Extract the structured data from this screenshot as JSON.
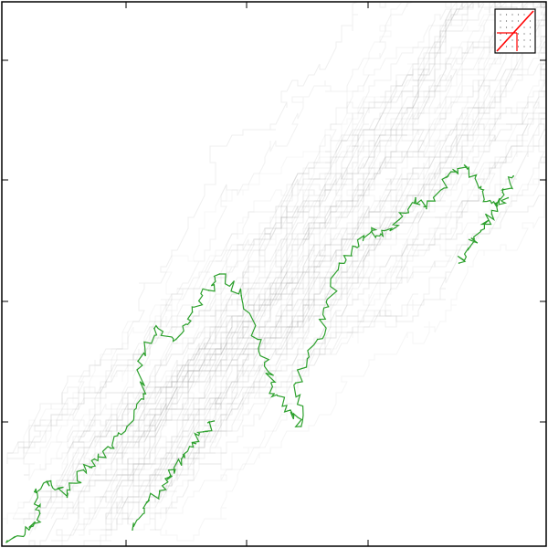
{
  "chart_data": {
    "type": "line",
    "title": "",
    "xlabel": "",
    "ylabel": "",
    "xlim": [
      0,
      1
    ],
    "ylim": [
      0,
      1
    ],
    "grid": false,
    "legend": "none",
    "colors": {
      "highlight_path": "#2ca02c",
      "background_paths": "#9a9a9a",
      "inset_diagonal": "#ff0000",
      "frame": "#000000"
    },
    "series": [
      {
        "kind": "highlighted-path",
        "x": [
          0.01,
          0.05,
          0.07,
          0.06,
          0.09,
          0.12,
          0.15,
          0.17,
          0.2,
          0.23,
          0.26,
          0.25,
          0.28,
          0.32,
          0.35,
          0.38,
          0.4,
          0.44,
          0.47,
          0.49,
          0.5,
          0.53,
          0.55,
          0.54,
          0.58,
          0.6,
          0.62,
          0.65,
          0.68,
          0.7,
          0.73,
          0.76,
          0.78,
          0.82,
          0.85,
          0.88,
          0.9,
          0.93
        ],
        "y": [
          0.01,
          0.03,
          0.06,
          0.1,
          0.12,
          0.09,
          0.14,
          0.16,
          0.18,
          0.22,
          0.28,
          0.34,
          0.4,
          0.38,
          0.43,
          0.47,
          0.5,
          0.46,
          0.38,
          0.32,
          0.28,
          0.25,
          0.22,
          0.3,
          0.38,
          0.44,
          0.52,
          0.55,
          0.58,
          0.57,
          0.6,
          0.64,
          0.62,
          0.68,
          0.7,
          0.66,
          0.63,
          0.64
        ]
      },
      {
        "kind": "highlighted-branch",
        "x": [
          0.24,
          0.26,
          0.29,
          0.31,
          0.33,
          0.35,
          0.37,
          0.39
        ],
        "y": [
          0.03,
          0.07,
          0.1,
          0.13,
          0.16,
          0.19,
          0.21,
          0.23
        ]
      },
      {
        "kind": "highlighted-branch",
        "x": [
          0.84,
          0.86,
          0.88,
          0.9,
          0.92,
          0.94
        ],
        "y": [
          0.52,
          0.55,
          0.58,
          0.61,
          0.65,
          0.68
        ]
      }
    ],
    "inset": {
      "position": "top-right",
      "marker": "diagonal"
    }
  }
}
